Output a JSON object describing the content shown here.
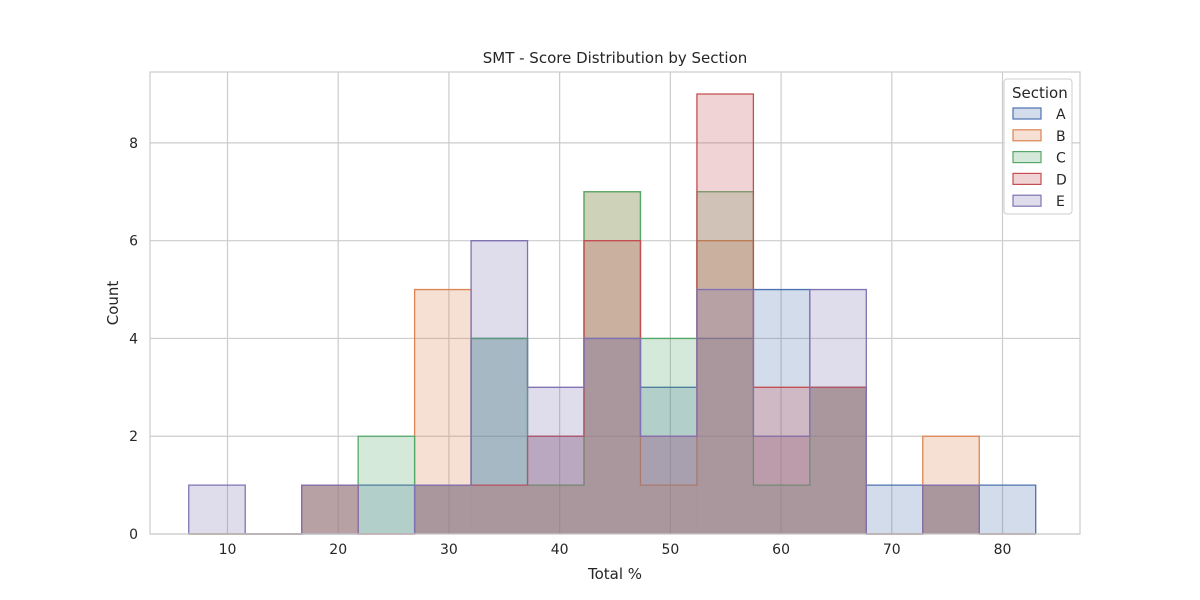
{
  "chart_data": {
    "type": "histogram",
    "title": "SMT - Score Distribution by Section",
    "xlabel": "Total %",
    "ylabel": "Count",
    "xlim": [
      3,
      87
    ],
    "ylim": [
      0,
      9.45
    ],
    "x_ticks": [
      10,
      20,
      30,
      40,
      50,
      60,
      70,
      80
    ],
    "y_ticks": [
      0,
      2,
      4,
      6,
      8
    ],
    "grid": true,
    "legend_title": "Section",
    "legend_position": "top-right",
    "bins": [
      6.5,
      11.6,
      16.7,
      21.8,
      26.9,
      32.0,
      37.1,
      42.2,
      47.3,
      52.4,
      57.5,
      62.6,
      67.7,
      72.8,
      77.9,
      83.0
    ],
    "series": [
      {
        "name": "A",
        "color": "#4c72b0",
        "values": [
          0,
          0,
          0,
          1,
          1,
          4,
          2,
          4,
          3,
          4,
          5,
          3,
          1,
          1,
          1
        ]
      },
      {
        "name": "B",
        "color": "#dd8452",
        "values": [
          0,
          0,
          1,
          0,
          5,
          1,
          1,
          7,
          1,
          6,
          2,
          3,
          0,
          2,
          0
        ]
      },
      {
        "name": "C",
        "color": "#55a868",
        "values": [
          0,
          0,
          1,
          2,
          1,
          4,
          1,
          7,
          4,
          7,
          1,
          3,
          0,
          1,
          0
        ]
      },
      {
        "name": "D",
        "color": "#c44e52",
        "values": [
          0,
          0,
          1,
          0,
          1,
          1,
          2,
          6,
          2,
          9,
          3,
          3,
          0,
          1,
          0
        ]
      },
      {
        "name": "E",
        "color": "#8172b3",
        "values": [
          1,
          0,
          1,
          0,
          1,
          6,
          3,
          4,
          2,
          5,
          2,
          5,
          0,
          1,
          0
        ]
      }
    ]
  }
}
